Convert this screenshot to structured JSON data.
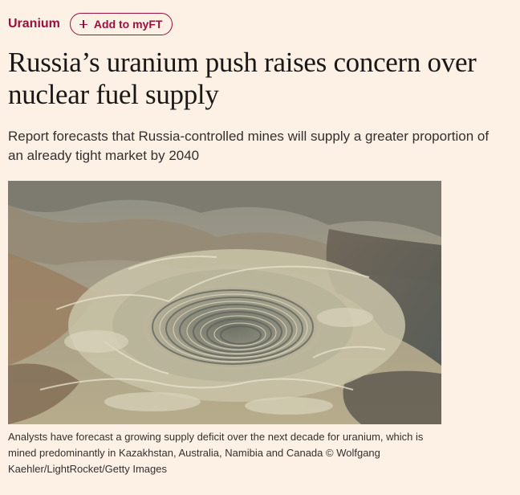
{
  "topic": {
    "label": "Uranium"
  },
  "myft": {
    "label": "Add to myFT"
  },
  "article": {
    "headline": "Russia’s uranium push raises concern over nuclear fuel supply",
    "standfirst": "Report forecasts that Russia-controlled mines will supply a greater proportion of an already tight market by 2040",
    "image": {
      "caption": "Analysts have forecast a growing supply deficit over the next decade for uranium, which is mined predominantly in Kazakhstan, Australia, Namibia and Canada © Wolfgang Kaehler/LightRocket/Getty Images"
    }
  },
  "colors": {
    "background": "#fdf1e6",
    "accent": "#990f3d",
    "headline": "#1a1817",
    "body_text": "#33302e"
  }
}
